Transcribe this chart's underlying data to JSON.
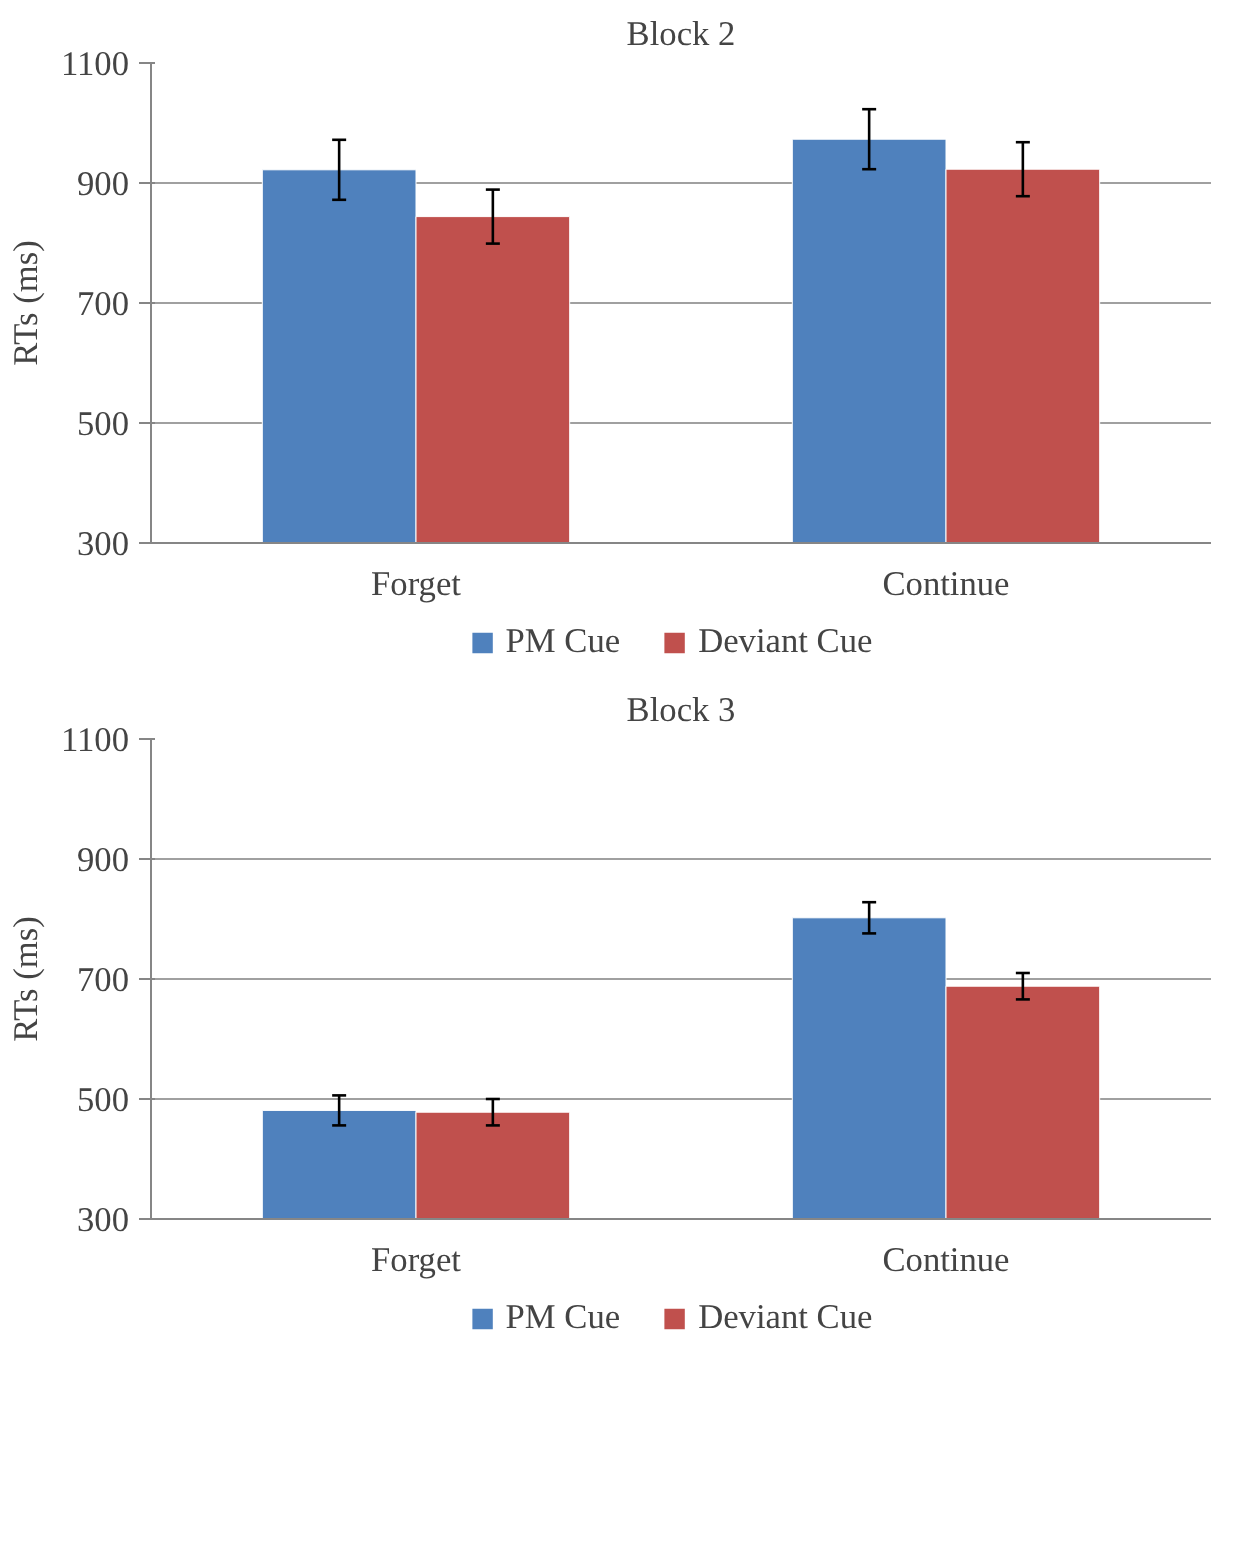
{
  "chart_data": [
    {
      "type": "bar",
      "title": "Block 2",
      "ylabel": "RTs (ms)",
      "categories": [
        "Forget",
        "Continue"
      ],
      "ylim": [
        300,
        1100
      ],
      "yticks": [
        300,
        500,
        700,
        900,
        1100
      ],
      "grid": "y",
      "legend": "bottom",
      "series": [
        {
          "name": "PM Cue",
          "color": "#4f81bd",
          "values": [
            922,
            973
          ],
          "errors": [
            50,
            50
          ]
        },
        {
          "name": "Deviant Cue",
          "color": "#c0504d",
          "values": [
            844,
            923
          ],
          "errors": [
            45,
            45
          ]
        }
      ]
    },
    {
      "type": "bar",
      "title": "Block 3",
      "ylabel": "RTs (ms)",
      "categories": [
        "Forget",
        "Continue"
      ],
      "ylim": [
        300,
        1100
      ],
      "yticks": [
        300,
        500,
        700,
        900,
        1100
      ],
      "grid": "y",
      "legend": "bottom",
      "series": [
        {
          "name": "PM Cue",
          "color": "#4f81bd",
          "values": [
            481,
            802
          ],
          "errors": [
            25,
            26
          ]
        },
        {
          "name": "Deviant Cue",
          "color": "#c0504d",
          "values": [
            478,
            688
          ],
          "errors": [
            22,
            22
          ]
        }
      ]
    }
  ]
}
